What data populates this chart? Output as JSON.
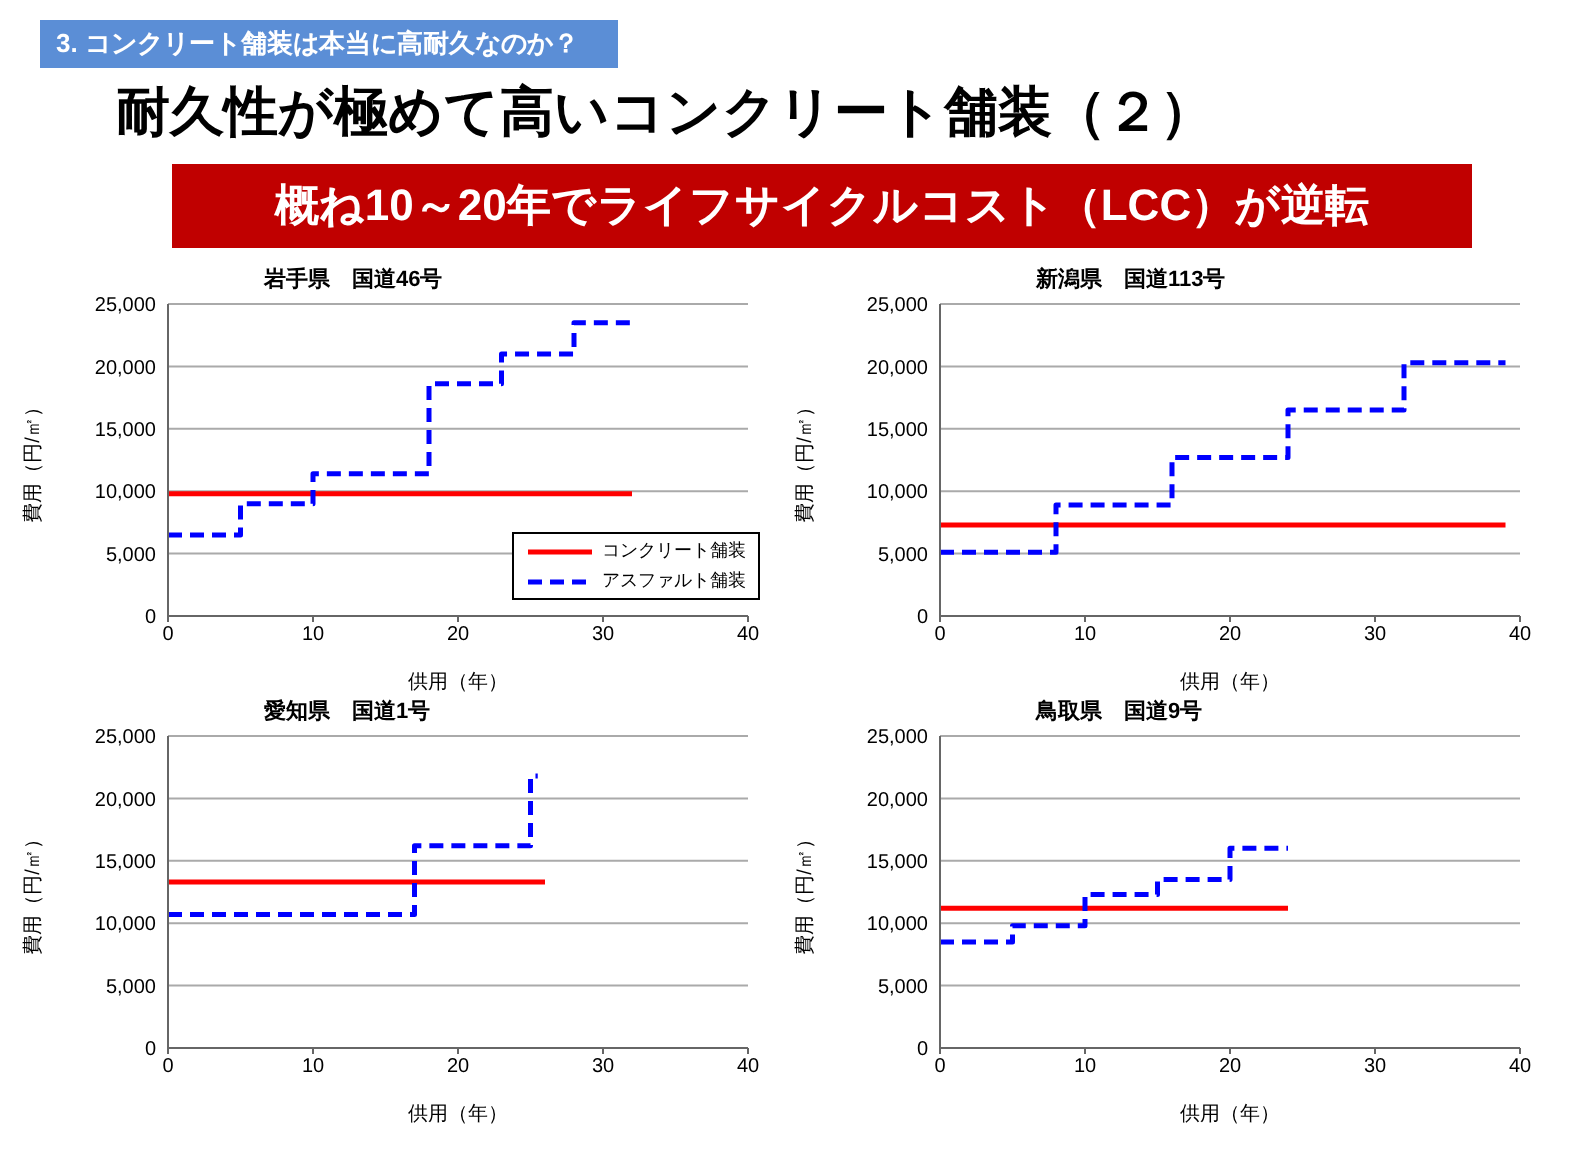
{
  "chart_data": [
    {
      "type": "other",
      "title": "耐久性が極めて高いコンクリート舗装（２）",
      "subtitle": "概ね10～20年でライフサイクルコスト（LCC）が逆転",
      "annotations": [
        "3. コンクリート舗装は本当に高耐久なのか？"
      ]
    },
    {
      "type": "step",
      "title": "岩手県　国道46号",
      "xlabel": "供用（年）",
      "ylabel": "費用（円/㎡）",
      "xlim": [
        0,
        40
      ],
      "xticks": [
        0,
        10,
        20,
        30,
        40
      ],
      "ylim": [
        0,
        25000
      ],
      "yticks": [
        {
          "value": 0,
          "label": "0"
        },
        {
          "value": 5000,
          "label": "5,000"
        },
        {
          "value": 10000,
          "label": "10,000"
        },
        {
          "value": 15000,
          "label": "15,000"
        },
        {
          "value": 20000,
          "label": "20,000"
        },
        {
          "value": 25000,
          "label": "25,000"
        }
      ],
      "grid": "y",
      "marker": "none",
      "legend": "bottom right",
      "series": [
        {
          "name": "コンクリート舗装",
          "color": "#ff0000",
          "line_style": "solid",
          "x": [
            0,
            32
          ],
          "values": [
            9800,
            9800
          ]
        },
        {
          "name": "アスファルト舗装",
          "color": "#0000ff",
          "line_style": "dashed",
          "x": [
            0,
            5,
            10,
            18,
            23,
            28,
            32
          ],
          "values": [
            6500,
            9000,
            11400,
            18600,
            21000,
            23500,
            23500
          ]
        }
      ]
    },
    {
      "type": "step",
      "title": "新潟県　国道113号",
      "xlabel": "供用（年）",
      "ylabel": "費用（円/㎡）",
      "xlim": [
        0,
        40
      ],
      "xticks": [
        0,
        10,
        20,
        30,
        40
      ],
      "ylim": [
        0,
        25000
      ],
      "yticks": [
        {
          "value": 0,
          "label": "0"
        },
        {
          "value": 5000,
          "label": "5,000"
        },
        {
          "value": 10000,
          "label": "10,000"
        },
        {
          "value": 15000,
          "label": "15,000"
        },
        {
          "value": 20000,
          "label": "20,000"
        },
        {
          "value": 25000,
          "label": "25,000"
        }
      ],
      "grid": "y",
      "marker": "none",
      "series": [
        {
          "color": "#ff0000",
          "line_style": "solid",
          "x": [
            0,
            39
          ],
          "values": [
            7300,
            7300
          ]
        },
        {
          "color": "#0000ff",
          "line_style": "dashed",
          "x": [
            0,
            8,
            16,
            24,
            32,
            39
          ],
          "values": [
            5100,
            8900,
            12700,
            16500,
            20300,
            20300
          ]
        }
      ]
    },
    {
      "type": "step",
      "title": "愛知県　国道1号",
      "xlabel": "供用（年）",
      "ylabel": "費用（円/㎡）",
      "xlim": [
        0,
        40
      ],
      "xticks": [
        0,
        10,
        20,
        30,
        40
      ],
      "ylim": [
        0,
        25000
      ],
      "yticks": [
        {
          "value": 0,
          "label": "0"
        },
        {
          "value": 5000,
          "label": "5,000"
        },
        {
          "value": 10000,
          "label": "10,000"
        },
        {
          "value": 15000,
          "label": "15,000"
        },
        {
          "value": 20000,
          "label": "20,000"
        },
        {
          "value": 25000,
          "label": "25,000"
        }
      ],
      "grid": "y",
      "marker": "none",
      "series": [
        {
          "color": "#ff0000",
          "line_style": "solid",
          "x": [
            0,
            26
          ],
          "values": [
            13300,
            13300
          ]
        },
        {
          "color": "#0000ff",
          "line_style": "dashed",
          "x": [
            0,
            17,
            25,
            25.5
          ],
          "values": [
            10700,
            16200,
            21800,
            21800
          ]
        }
      ]
    },
    {
      "type": "step",
      "title": "鳥取県　国道9号",
      "xlabel": "供用（年）",
      "ylabel": "費用（円/㎡）",
      "xlim": [
        0,
        40
      ],
      "xticks": [
        0,
        10,
        20,
        30,
        40
      ],
      "ylim": [
        0,
        25000
      ],
      "yticks": [
        {
          "value": 0,
          "label": "0"
        },
        {
          "value": 5000,
          "label": "5,000"
        },
        {
          "value": 10000,
          "label": "10,000"
        },
        {
          "value": 15000,
          "label": "15,000"
        },
        {
          "value": 20000,
          "label": "20,000"
        },
        {
          "value": 25000,
          "label": "25,000"
        }
      ],
      "grid": "y",
      "marker": "none",
      "series": [
        {
          "color": "#ff0000",
          "line_style": "solid",
          "x": [
            0,
            24
          ],
          "values": [
            11200,
            11200
          ]
        },
        {
          "color": "#0000ff",
          "line_style": "dashed",
          "x": [
            0,
            5,
            10,
            15,
            20,
            24
          ],
          "values": [
            8500,
            9800,
            12300,
            13500,
            16000,
            16000
          ]
        }
      ]
    }
  ]
}
